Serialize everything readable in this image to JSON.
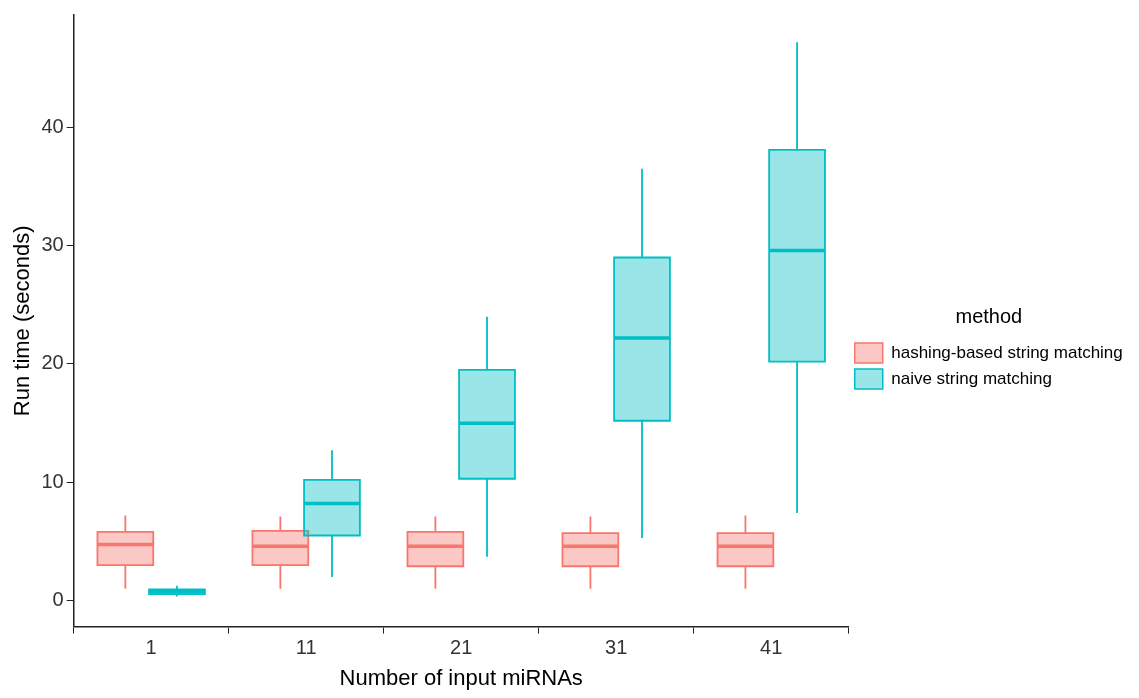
{
  "chart_data": {
    "type": "box",
    "xlabel": "Number of input miRNAs",
    "ylabel": "Run time (seconds)",
    "legend_title": "method",
    "legend": "right",
    "grid": false,
    "categories": [
      "1",
      "11",
      "21",
      "31",
      "41"
    ],
    "ylim": [
      -2.2,
      49.5
    ],
    "yticks": [
      0,
      10,
      20,
      30,
      40
    ],
    "series": [
      {
        "name": "hashing-based string matching",
        "color": "#f8766d",
        "boxes": [
          {
            "low": 1.0,
            "q1": 3.0,
            "median": 4.75,
            "q3": 5.8,
            "high": 7.2
          },
          {
            "low": 1.0,
            "q1": 3.0,
            "median": 4.6,
            "q3": 5.9,
            "high": 7.1
          },
          {
            "low": 1.0,
            "q1": 2.9,
            "median": 4.6,
            "q3": 5.8,
            "high": 7.1
          },
          {
            "low": 1.0,
            "q1": 2.9,
            "median": 4.6,
            "q3": 5.7,
            "high": 7.1
          },
          {
            "low": 1.0,
            "q1": 2.9,
            "median": 4.6,
            "q3": 5.7,
            "high": 7.2
          }
        ]
      },
      {
        "name": "naive string matching",
        "color": "#00bfc4",
        "boxes": [
          {
            "low": 0.35,
            "q1": 0.55,
            "median": 0.75,
            "q3": 0.95,
            "high": 1.25
          },
          {
            "low": 2.0,
            "q1": 5.5,
            "median": 8.2,
            "q3": 10.2,
            "high": 12.7
          },
          {
            "low": 3.7,
            "q1": 10.3,
            "median": 15.0,
            "q3": 19.5,
            "high": 24.0
          },
          {
            "low": 5.3,
            "q1": 15.2,
            "median": 22.2,
            "q3": 29.0,
            "high": 36.5
          },
          {
            "low": 7.4,
            "q1": 20.2,
            "median": 29.6,
            "q3": 38.1,
            "high": 47.2
          }
        ]
      }
    ]
  }
}
